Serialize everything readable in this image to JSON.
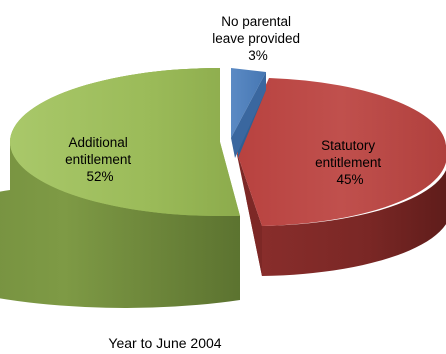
{
  "chart_data": {
    "type": "pie",
    "style": "3d-exploded",
    "slices": [
      {
        "label": "No parental leave provided",
        "value": 3,
        "color": "#4F81BD"
      },
      {
        "label": "Statutory entitlement",
        "value": 45,
        "color": "#C0504D"
      },
      {
        "label": "Additional entitlement",
        "value": 52,
        "color": "#9BBB59"
      }
    ],
    "slice_labels": {
      "blue": [
        "No parental",
        "leave provided",
        "3%"
      ],
      "red": [
        "Statutory",
        "entitlement",
        "45%"
      ],
      "green": [
        "Additional",
        "entitlement",
        "52%"
      ]
    },
    "caption": "Year to June 2004"
  }
}
